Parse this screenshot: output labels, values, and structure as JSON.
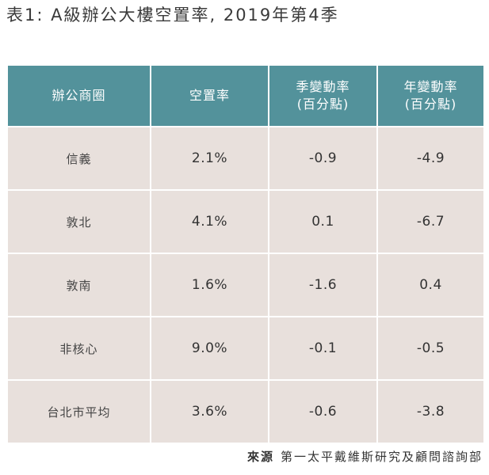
{
  "title": "表1: A級辦公大樓空置率, 2019年第4季",
  "table": {
    "headers": [
      {
        "line1": "辦公商圈",
        "line2": ""
      },
      {
        "line1": "空置率",
        "line2": ""
      },
      {
        "line1": "季變動率",
        "line2": "(百分點)"
      },
      {
        "line1": "年變動率",
        "line2": "(百分點)"
      }
    ],
    "rows": [
      {
        "district": "信義",
        "vacancy": "2.1%",
        "qoq": "-0.9",
        "yoy": "-4.9"
      },
      {
        "district": "敦北",
        "vacancy": "4.1%",
        "qoq": "0.1",
        "yoy": "-6.7"
      },
      {
        "district": "敦南",
        "vacancy": "1.6%",
        "qoq": "-1.6",
        "yoy": "0.4"
      },
      {
        "district": "非核心",
        "vacancy": "9.0%",
        "qoq": "-0.1",
        "yoy": "-0.5"
      },
      {
        "district": "台北市平均",
        "vacancy": "3.6%",
        "qoq": "-0.6",
        "yoy": "-3.8"
      }
    ]
  },
  "source": {
    "label": "來源",
    "text": "第一太平戴維斯研究及顧問諮詢部"
  },
  "colors": {
    "header_bg": "#53929b",
    "cell_bg": "#e8e0dc",
    "grid": "#ffffff"
  }
}
